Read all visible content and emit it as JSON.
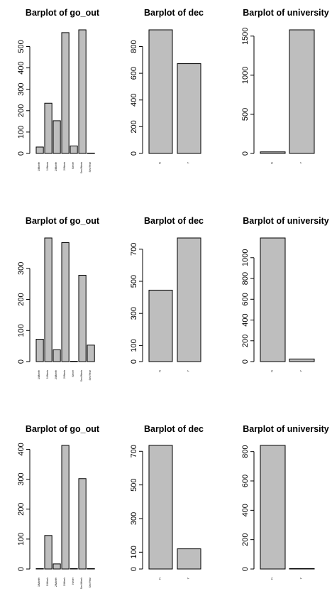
{
  "chart_data": [
    {
      "type": "bar",
      "title": "Barplot of go_out",
      "categories": [
        "1/Month",
        "1/Week",
        "2/Month",
        "2/Week",
        "Never",
        "Sev/Week",
        "Sev/Year"
      ],
      "values": [
        30,
        235,
        153,
        565,
        35,
        578,
        0
      ],
      "yticks": [
        0,
        100,
        200,
        300,
        400,
        500
      ],
      "ylim": [
        0,
        578
      ]
    },
    {
      "type": "bar",
      "title": "Barplot of dec",
      "categories": [
        "N",
        "Y"
      ],
      "values": [
        925,
        672
      ],
      "yticks": [
        0,
        200,
        400,
        600,
        800
      ],
      "ylim": [
        0,
        925
      ]
    },
    {
      "type": "bar",
      "title": "Barplot of university",
      "categories": [
        "N",
        "Y"
      ],
      "values": [
        20,
        1580
      ],
      "yticks": [
        0,
        500,
        1000,
        1500
      ],
      "ylim": [
        0,
        1580
      ]
    },
    {
      "type": "bar",
      "title": "Barplot of go_out",
      "categories": [
        "1/Month",
        "1/Week",
        "2/Month",
        "2/Week",
        "Never",
        "Sev/Week",
        "Sev/Year"
      ],
      "values": [
        72,
        398,
        38,
        383,
        0,
        278,
        53
      ],
      "yticks": [
        0,
        100,
        200,
        300
      ],
      "ylim": [
        0,
        398
      ]
    },
    {
      "type": "bar",
      "title": "Barplot of dec",
      "categories": [
        "N",
        "Y"
      ],
      "values": [
        445,
        770
      ],
      "yticks": [
        0,
        100,
        300,
        500,
        700
      ],
      "ylim": [
        0,
        770
      ]
    },
    {
      "type": "bar",
      "title": "Barplot of university",
      "categories": [
        "N",
        "Y"
      ],
      "values": [
        1190,
        25
      ],
      "yticks": [
        0,
        200,
        400,
        600,
        800,
        1000
      ],
      "ylim": [
        0,
        1190
      ]
    },
    {
      "type": "bar",
      "title": "Barplot of go_out",
      "categories": [
        "1/Month",
        "1/Week",
        "2/Month",
        "2/Week",
        "Never",
        "Sev/Week",
        "Sev/Year"
      ],
      "values": [
        0,
        112,
        17,
        413,
        0,
        302,
        0
      ],
      "yticks": [
        0,
        100,
        200,
        300,
        400
      ],
      "ylim": [
        0,
        413
      ]
    },
    {
      "type": "bar",
      "title": "Barplot of dec",
      "categories": [
        "N",
        "Y"
      ],
      "values": [
        735,
        120
      ],
      "yticks": [
        0,
        100,
        300,
        500,
        700
      ],
      "ylim": [
        0,
        735
      ]
    },
    {
      "type": "bar",
      "title": "Barplot of university",
      "categories": [
        "N",
        "Y"
      ],
      "values": [
        842,
        3
      ],
      "yticks": [
        0,
        200,
        400,
        600,
        800
      ],
      "ylim": [
        0,
        842
      ]
    }
  ]
}
